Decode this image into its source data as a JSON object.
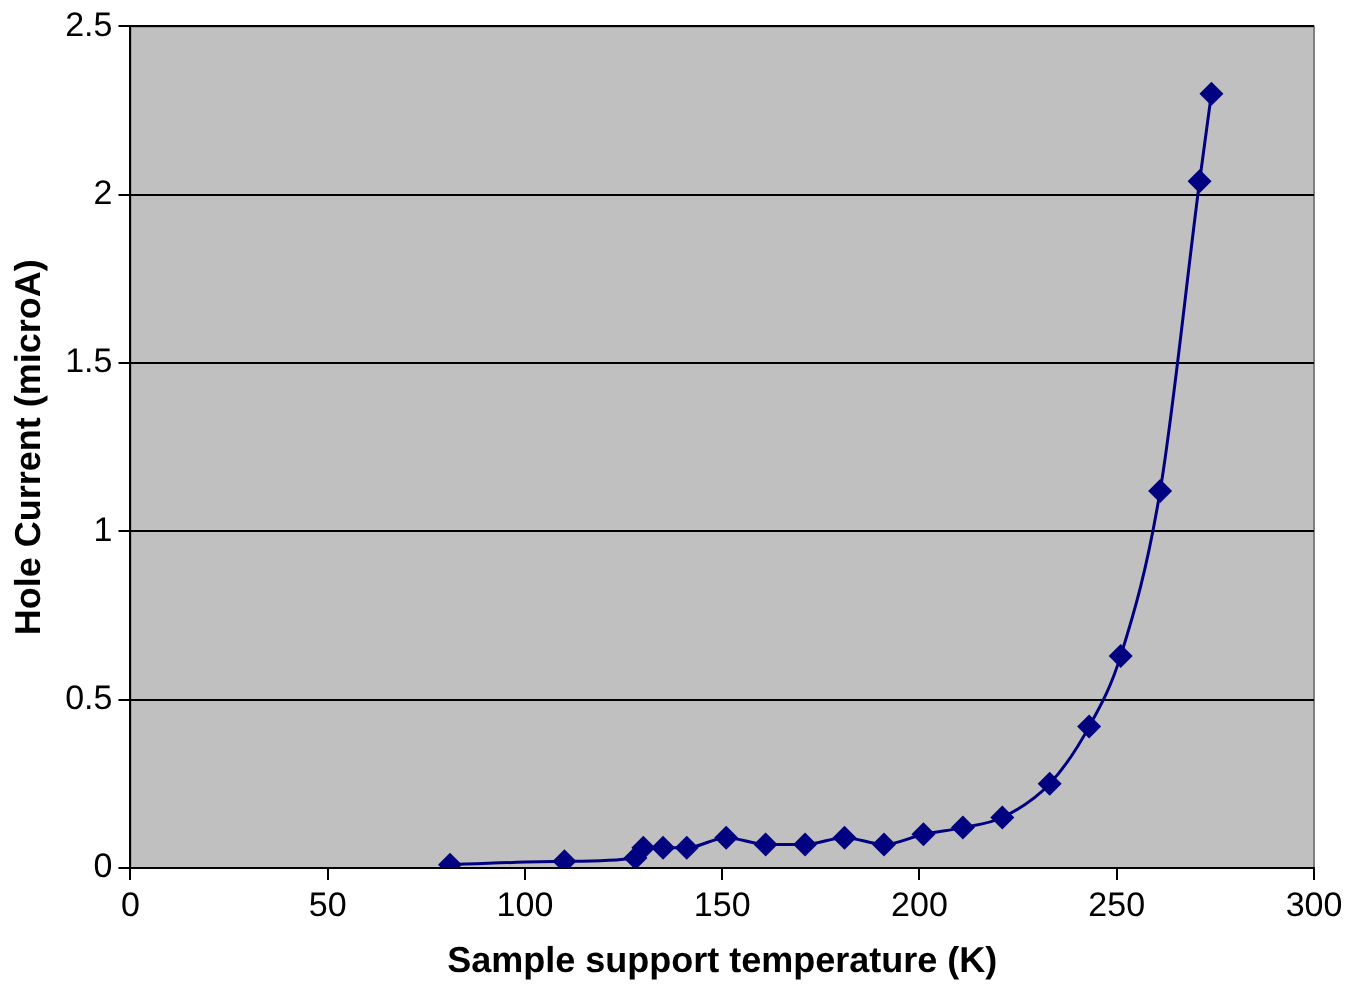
{
  "chart_data": {
    "type": "line",
    "xlabel": "Sample support temperature (K)",
    "ylabel": "Hole Current (microA)",
    "x": [
      81,
      110,
      128,
      130,
      135,
      141,
      151,
      161,
      171,
      181,
      191,
      201,
      211,
      221,
      233,
      243,
      251,
      261,
      271,
      274
    ],
    "series": [
      {
        "color": "#000080",
        "values": [
          0.01,
          0.02,
          0.03,
          0.06,
          0.06,
          0.06,
          0.09,
          0.07,
          0.07,
          0.09,
          0.07,
          0.1,
          0.12,
          0.15,
          0.25,
          0.42,
          0.63,
          1.12,
          2.04,
          2.3
        ]
      }
    ],
    "xlim": [
      0,
      300
    ],
    "xticks": [
      0,
      50,
      100,
      150,
      200,
      250,
      300
    ],
    "ylim": [
      0,
      2.5
    ],
    "yticks": [
      0,
      0.5,
      1,
      1.5,
      2,
      2.5
    ],
    "grid": "y",
    "legend": false,
    "marker": "diamond",
    "line_style": "solid"
  }
}
